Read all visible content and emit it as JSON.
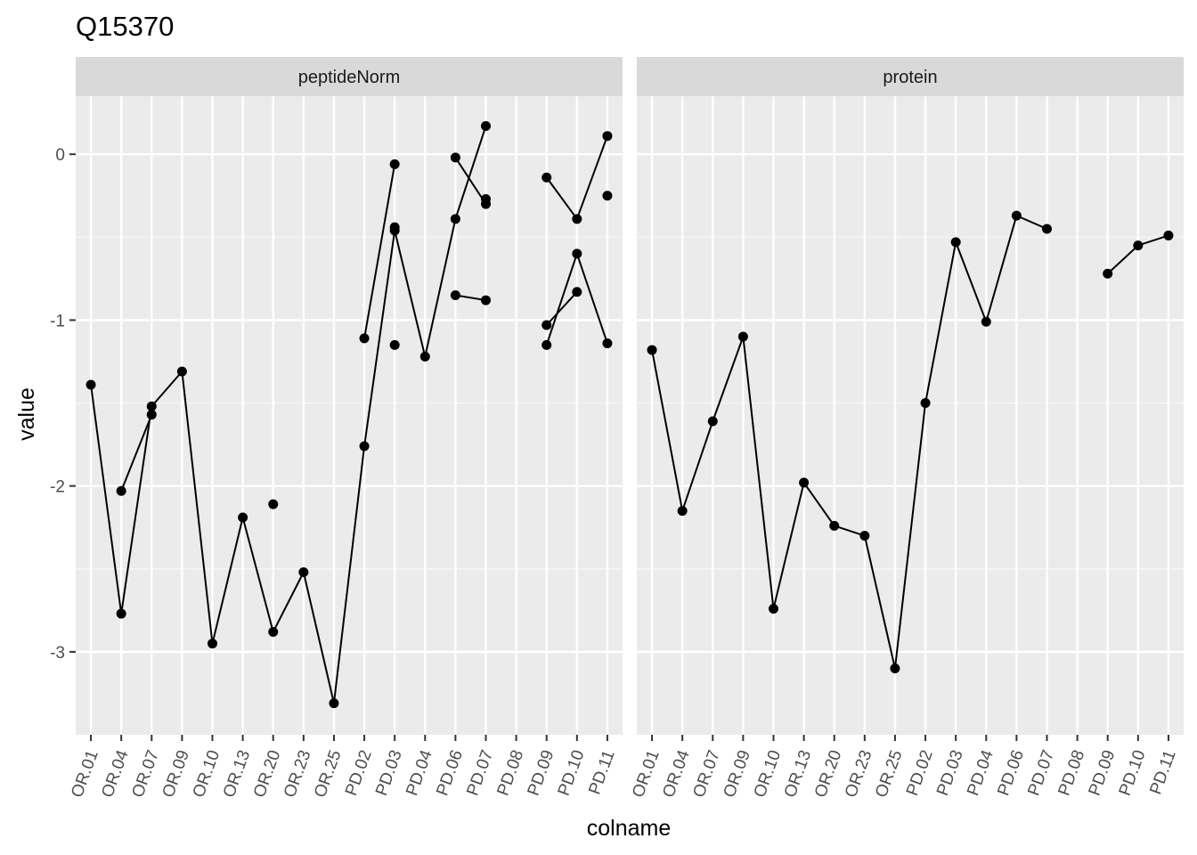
{
  "chart_data": {
    "type": "line",
    "title": "Q15370",
    "xlabel": "colname",
    "ylabel": "value",
    "ylim": [
      -3.5,
      0.35
    ],
    "yticks": [
      0,
      -1,
      -2,
      -3
    ],
    "grid": true,
    "legend": "none",
    "x": [
      "OR.01",
      "OR.04",
      "OR.07",
      "OR.09",
      "OR.10",
      "OR.13",
      "OR.20",
      "OR.23",
      "OR.25",
      "PD.02",
      "PD.03",
      "PD.04",
      "PD.06",
      "PD.07",
      "PD.08",
      "PD.09",
      "PD.10",
      "PD.11"
    ],
    "panels": [
      {
        "label": "peptideNorm",
        "series": [
          {
            "values": [
              -1.39,
              -2.77,
              -1.52,
              -1.31,
              -2.95,
              -2.19,
              -2.88,
              -2.52,
              -3.31,
              -1.76,
              -0.46,
              -1.22,
              -0.39,
              0.17,
              null,
              -1.15,
              -0.6,
              -1.14
            ]
          },
          {
            "values": [
              null,
              -2.03,
              -1.57,
              null,
              null,
              null,
              -2.11,
              null,
              null,
              -1.11,
              -0.06,
              null,
              -0.02,
              -0.3,
              null,
              -0.14,
              -0.39,
              0.11
            ]
          },
          {
            "values": [
              null,
              null,
              null,
              null,
              null,
              null,
              null,
              null,
              null,
              null,
              -0.44,
              null,
              -0.85,
              -0.88,
              null,
              -1.03,
              -0.83,
              null
            ]
          },
          {
            "values": [
              null,
              null,
              null,
              null,
              null,
              null,
              null,
              null,
              null,
              null,
              -1.15,
              null,
              null,
              -0.27,
              null,
              null,
              null,
              -0.25
            ]
          }
        ]
      },
      {
        "label": "protein",
        "series": [
          {
            "values": [
              -1.18,
              -2.15,
              -1.61,
              -1.1,
              -2.74,
              -1.98,
              -2.24,
              -2.3,
              -3.1,
              -1.5,
              -0.53,
              -1.01,
              -0.37,
              -0.45,
              null,
              -0.72,
              -0.55,
              -0.49
            ]
          }
        ]
      }
    ]
  }
}
